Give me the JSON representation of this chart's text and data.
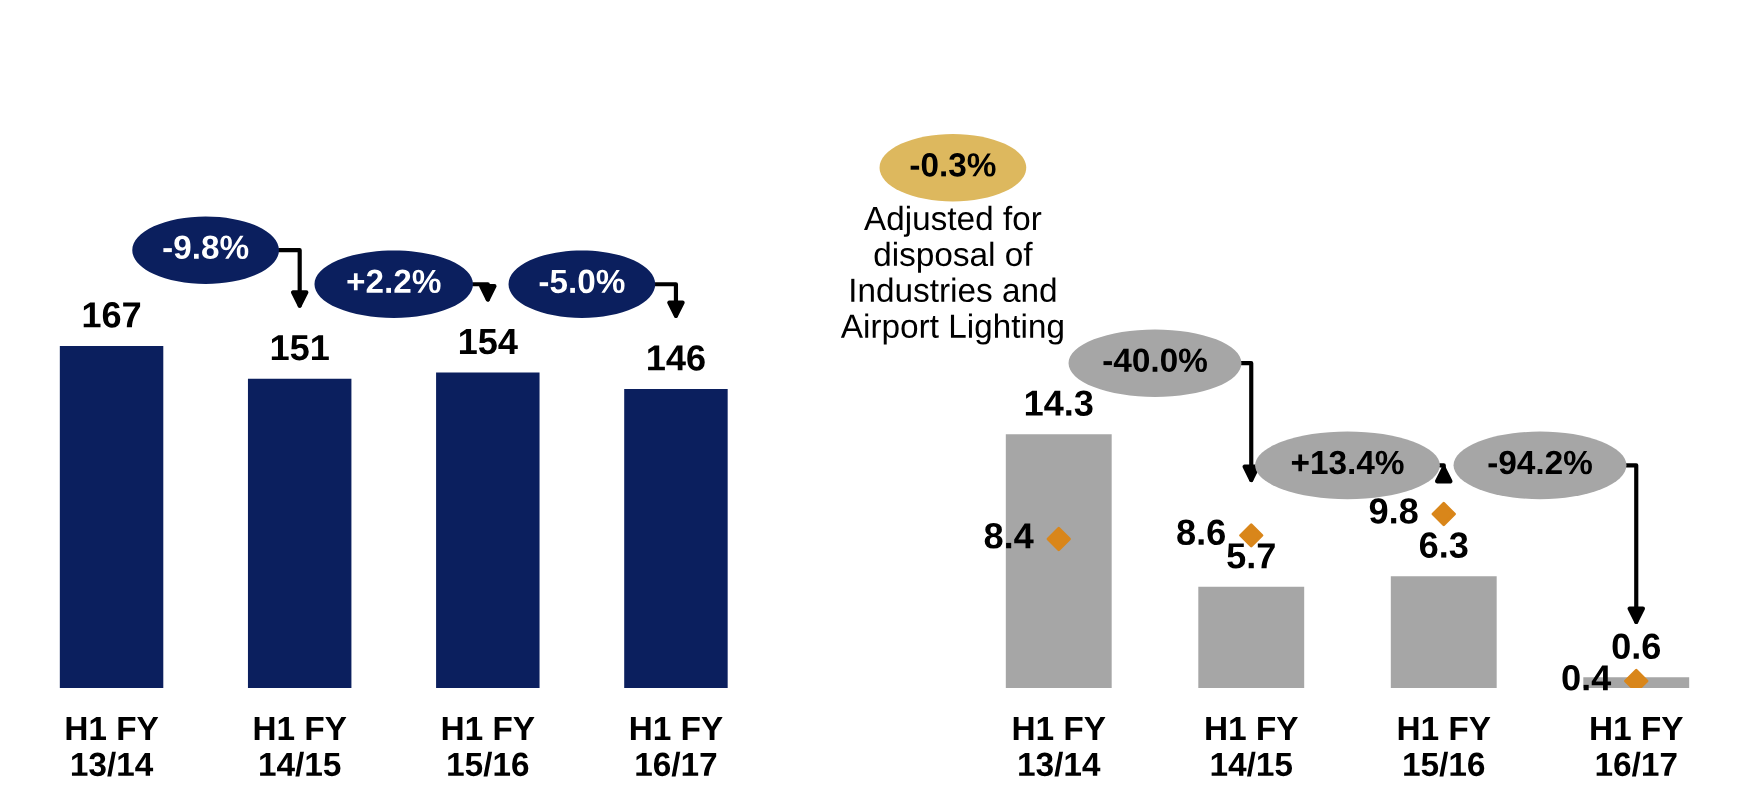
{
  "chart_data": [
    {
      "type": "bar",
      "categories": [
        "H1 FY\n13/14",
        "H1 FY\n14/15",
        "H1 FY\n15/16",
        "H1 FY\n16/17"
      ],
      "tick_labels": "x",
      "data_labels": true,
      "series": [
        {
          "color": "#0b1f5e",
          "values": [
            167,
            151,
            154,
            146
          ]
        }
      ],
      "annotations": [
        "-9.8%",
        "+2.2%",
        "-5.0%"
      ]
    },
    {
      "type": "bar",
      "categories": [
        "H1 FY\n13/14",
        "H1 FY\n14/15",
        "H1 FY\n15/16",
        "H1 FY\n16/17"
      ],
      "tick_labels": "x",
      "data_labels": true,
      "series": [
        {
          "color": "#a6a6a6",
          "values": [
            14.3,
            5.7,
            6.3,
            0.6
          ]
        },
        {
          "type": "scatter",
          "color": "#d9861a",
          "marker": "diamond",
          "values": [
            8.4,
            8.6,
            9.8,
            0.4
          ]
        }
      ],
      "annotations": [
        "-40.0%",
        "+13.4%",
        "-94.2%",
        "-0.3%",
        "Adjusted for\ndisposal of\nIndustries and\nAirport Lighting"
      ]
    }
  ]
}
